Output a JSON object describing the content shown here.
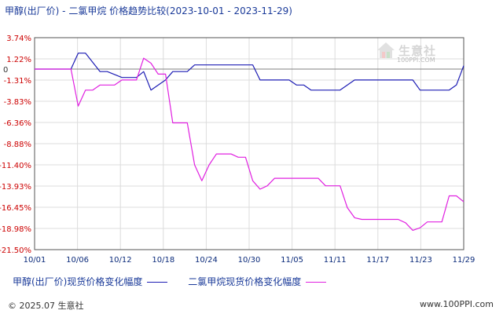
{
  "chart_data": {
    "type": "line",
    "title": "甲醇(出厂价) - 二氯甲烷 价格趋势比较(2023-10-01 - 2023-11-29)",
    "x_ticks": [
      "10/01",
      "10/06",
      "10/12",
      "10/18",
      "10/24",
      "10/30",
      "11/05",
      "11/11",
      "11/17",
      "11/23",
      "11/29"
    ],
    "x_range": [
      "2023-10-01",
      "2023-11-29"
    ],
    "y_ticks": [
      "3.74%",
      "1.22%",
      "-1.31%",
      "-3.83%",
      "-6.36%",
      "-8.88%",
      "-11.40%",
      "-13.93%",
      "-16.45%",
      "-18.98%",
      "-21.50%"
    ],
    "ylim": [
      -21.5,
      3.74
    ],
    "zero_label": "0",
    "grid": true,
    "legend_position": "bottom",
    "series": [
      {
        "name": "甲醇(出厂价)现货价格变化幅度",
        "color": "#1c1cb4",
        "points": [
          [
            "2023-10-01",
            0
          ],
          [
            "2023-10-06",
            0
          ],
          [
            "2023-10-07",
            1.9
          ],
          [
            "2023-10-08",
            1.9
          ],
          [
            "2023-10-10",
            -0.3
          ],
          [
            "2023-10-11",
            -0.3
          ],
          [
            "2023-10-13",
            -1
          ],
          [
            "2023-10-15",
            -1
          ],
          [
            "2023-10-16",
            -0.3
          ],
          [
            "2023-10-17",
            -2.5
          ],
          [
            "2023-10-19",
            -1.3
          ],
          [
            "2023-10-20",
            -0.3
          ],
          [
            "2023-10-22",
            -0.3
          ],
          [
            "2023-10-23",
            0.5
          ],
          [
            "2023-10-31",
            0.5
          ],
          [
            "2023-11-01",
            -1.3
          ],
          [
            "2023-11-05",
            -1.3
          ],
          [
            "2023-11-06",
            -1.9
          ],
          [
            "2023-11-07",
            -1.9
          ],
          [
            "2023-11-08",
            -2.5
          ],
          [
            "2023-11-12",
            -2.5
          ],
          [
            "2023-11-14",
            -1.3
          ],
          [
            "2023-11-22",
            -1.3
          ],
          [
            "2023-11-23",
            -2.5
          ],
          [
            "2023-11-27",
            -2.5
          ],
          [
            "2023-11-28",
            -1.9
          ],
          [
            "2023-11-29",
            0.4
          ]
        ]
      },
      {
        "name": "二氯甲烷现货价格变化幅度",
        "color": "#e020e0",
        "points": [
          [
            "2023-10-01",
            0
          ],
          [
            "2023-10-06",
            0
          ],
          [
            "2023-10-07",
            -4.4
          ],
          [
            "2023-10-08",
            -2.5
          ],
          [
            "2023-10-09",
            -2.5
          ],
          [
            "2023-10-10",
            -1.9
          ],
          [
            "2023-10-12",
            -1.9
          ],
          [
            "2023-10-13",
            -1.3
          ],
          [
            "2023-10-15",
            -1.3
          ],
          [
            "2023-10-16",
            1.3
          ],
          [
            "2023-10-17",
            0.7
          ],
          [
            "2023-10-18",
            -0.6
          ],
          [
            "2023-10-19",
            -0.6
          ],
          [
            "2023-10-20",
            -6.4
          ],
          [
            "2023-10-22",
            -6.4
          ],
          [
            "2023-10-23",
            -11.4
          ],
          [
            "2023-10-24",
            -13.3
          ],
          [
            "2023-10-25",
            -11.4
          ],
          [
            "2023-10-26",
            -10.1
          ],
          [
            "2023-10-27",
            -10.1
          ],
          [
            "2023-10-28",
            -10.1
          ],
          [
            "2023-10-29",
            -10.5
          ],
          [
            "2023-10-30",
            -10.5
          ],
          [
            "2023-10-31",
            -13.3
          ],
          [
            "2023-11-01",
            -14.3
          ],
          [
            "2023-11-02",
            -13.9
          ],
          [
            "2023-11-03",
            -13
          ],
          [
            "2023-11-08",
            -13
          ],
          [
            "2023-11-09",
            -13
          ],
          [
            "2023-11-10",
            -13.9
          ],
          [
            "2023-11-12",
            -13.9
          ],
          [
            "2023-11-13",
            -16.5
          ],
          [
            "2023-11-14",
            -17.7
          ],
          [
            "2023-11-15",
            -17.9
          ],
          [
            "2023-11-20",
            -17.9
          ],
          [
            "2023-11-21",
            -18.3
          ],
          [
            "2023-11-22",
            -19.2
          ],
          [
            "2023-11-23",
            -18.9
          ],
          [
            "2023-11-24",
            -18.2
          ],
          [
            "2023-11-26",
            -18.2
          ],
          [
            "2023-11-27",
            -15.1
          ],
          [
            "2023-11-28",
            -15.1
          ],
          [
            "2023-11-29",
            -15.8
          ]
        ]
      }
    ]
  },
  "watermark": {
    "text": "生意社",
    "url": "100PPI.COM",
    "icon": "house-logo-icon"
  },
  "footer": {
    "copyright": "© 2025.07 生意社",
    "site": "www.100PPI.com"
  }
}
